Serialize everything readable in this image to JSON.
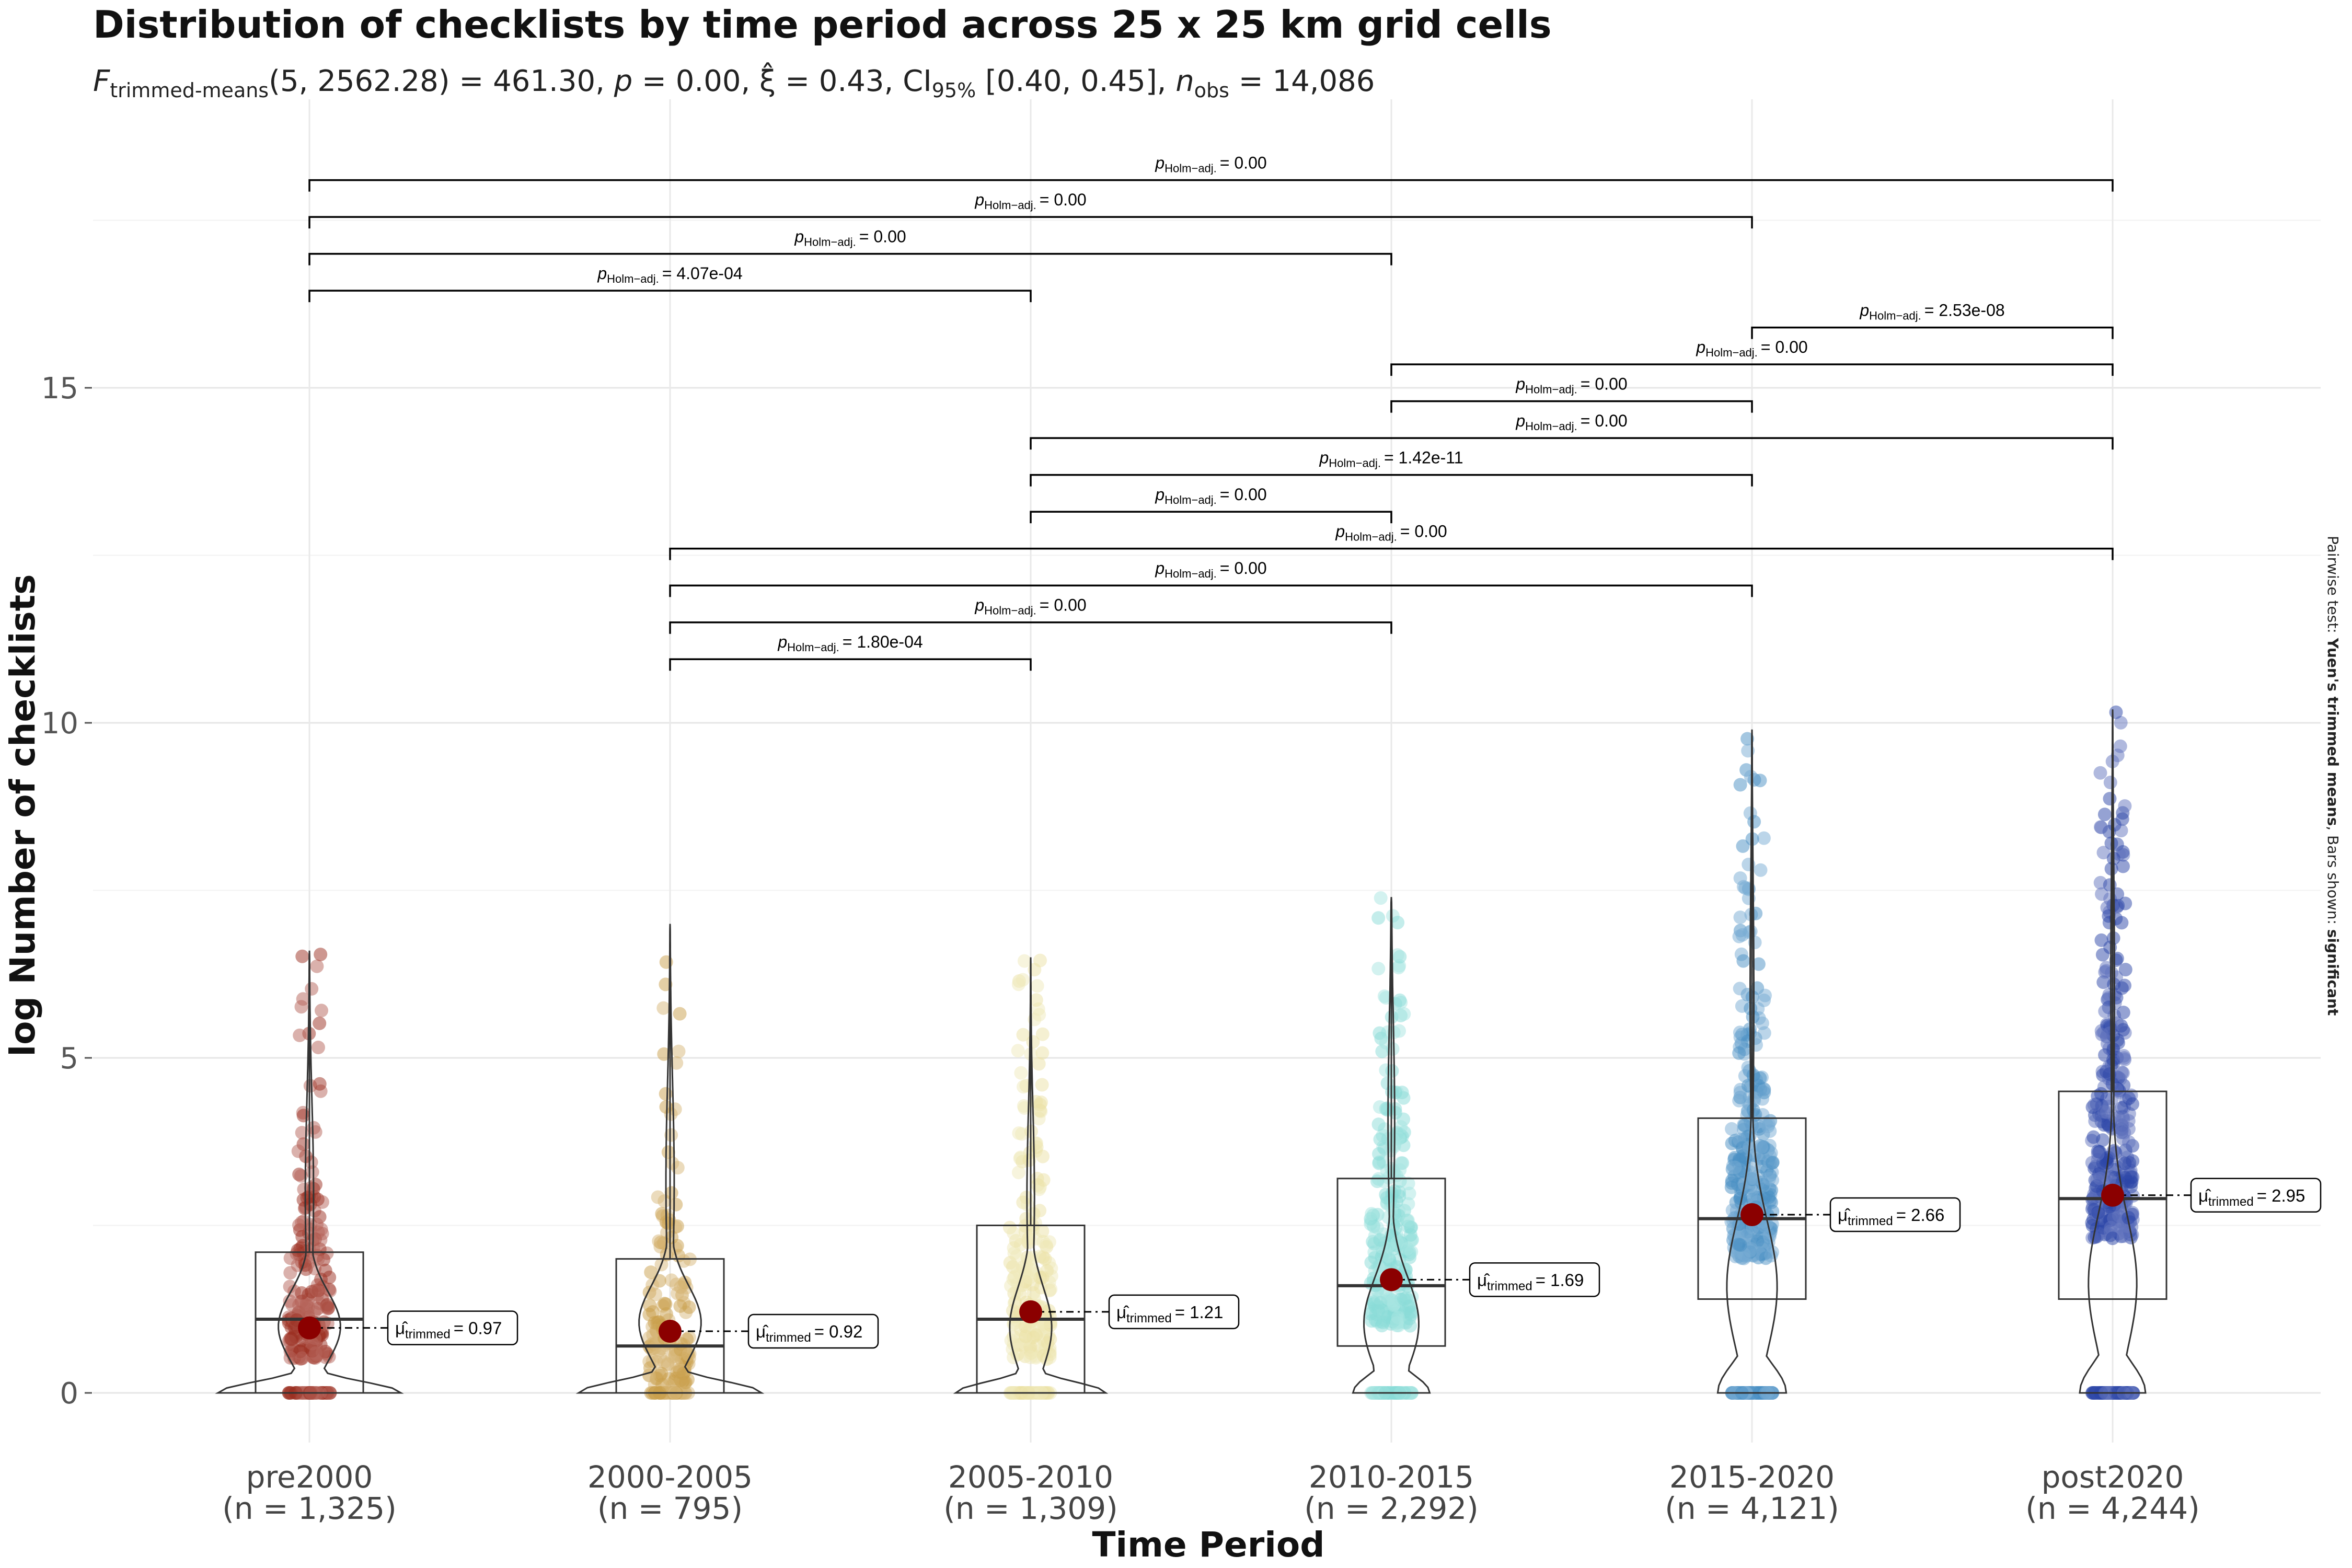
{
  "chart_data": {
    "type": "violin",
    "title": "Distribution of checklists by time period across 25 x 25 km grid cells",
    "subtitle": {
      "stat_symbol": "F",
      "stat_sub": "trimmed-means",
      "stat_args": "(5, 2562.28) = 461.30, ",
      "p_symbol": "p",
      "p_text": " = 0.00, ",
      "xi_symbol": "ξ̂",
      "xi_text": " = 0.43, CI",
      "ci_sub": "95%",
      "ci_text": " [0.40, 0.45], ",
      "n_symbol": "n",
      "n_sub": "obs",
      "n_text": " = 14,086"
    },
    "xlabel": "Time Period",
    "ylabel": "log Number of checklists",
    "ylim": [
      -0.8,
      18.5
    ],
    "yticks": [
      0,
      5,
      10,
      15
    ],
    "grid": true,
    "caption": {
      "prefix": "Pairwise test: ",
      "test_bold": "Yuen's trimmed means",
      "middle": ", Bars shown: ",
      "shown_bold": "significant"
    },
    "mu_label_symbol": "μ̂",
    "mu_label_sub": "trimmed",
    "p_label_symbol": "p",
    "p_label_sub": "Holm−adj.",
    "groups": [
      {
        "category": "pre2000",
        "n_label": "(n = 1,325)",
        "color": "#9c3022",
        "trimmed_mean": 0.97,
        "mean_label": "= 0.97",
        "box": {
          "q1": 0.0,
          "median": 1.1,
          "q3": 2.1
        },
        "max": 6.6,
        "width": 1.0,
        "shape": "bottom"
      },
      {
        "category": "2000-2005",
        "n_label": "(n = 795)",
        "color": "#c9a04c",
        "trimmed_mean": 0.92,
        "mean_label": "= 0.92",
        "box": {
          "q1": 0.0,
          "median": 0.7,
          "q3": 2.0
        },
        "max": 7.0,
        "width": 1.0,
        "shape": "bottom"
      },
      {
        "category": "2005-2010",
        "n_label": "(n = 1,309)",
        "color": "#ebe2a5",
        "trimmed_mean": 1.21,
        "mean_label": "= 1.21",
        "box": {
          "q1": 0.0,
          "median": 1.1,
          "q3": 2.5
        },
        "max": 6.5,
        "width": 0.82,
        "shape": "low"
      },
      {
        "category": "2010-2015",
        "n_label": "(n = 2,292)",
        "color": "#89dcd7",
        "trimmed_mean": 1.69,
        "mean_label": "= 1.69",
        "box": {
          "q1": 0.7,
          "median": 1.6,
          "q3": 3.2
        },
        "max": 7.4,
        "width": 0.6,
        "shape": "mid"
      },
      {
        "category": "2015-2020",
        "n_label": "(n = 4,121)",
        "color": "#4a8fc4",
        "trimmed_mean": 2.66,
        "mean_label": "= 2.66",
        "box": {
          "q1": 1.4,
          "median": 2.6,
          "q3": 4.1
        },
        "max": 9.9,
        "width": 0.5,
        "shape": "high"
      },
      {
        "category": "post2020",
        "n_label": "(n = 4,244)",
        "color": "#2c45a8",
        "trimmed_mean": 2.95,
        "mean_label": "= 2.95",
        "box": {
          "q1": 1.4,
          "median": 2.9,
          "q3": 4.5
        },
        "max": 10.2,
        "width": 0.48,
        "shape": "high"
      }
    ],
    "comparisons": [
      {
        "from": 0,
        "to": 5,
        "level": 18.1,
        "p": "= 0.00"
      },
      {
        "from": 0,
        "to": 4,
        "level": 17.55,
        "p": "= 0.00"
      },
      {
        "from": 0,
        "to": 3,
        "level": 17.0,
        "p": "= 0.00"
      },
      {
        "from": 0,
        "to": 2,
        "level": 16.45,
        "p": "= 4.07e-04"
      },
      {
        "from": 4,
        "to": 5,
        "level": 15.9,
        "p": "= 2.53e-08"
      },
      {
        "from": 3,
        "to": 5,
        "level": 15.35,
        "p": "= 0.00"
      },
      {
        "from": 3,
        "to": 4,
        "level": 14.8,
        "p": "= 0.00"
      },
      {
        "from": 2,
        "to": 5,
        "level": 14.25,
        "p": "= 0.00"
      },
      {
        "from": 2,
        "to": 4,
        "level": 13.7,
        "p": "= 1.42e-11"
      },
      {
        "from": 2,
        "to": 3,
        "level": 13.15,
        "p": "= 0.00"
      },
      {
        "from": 1,
        "to": 5,
        "level": 12.6,
        "p": "= 0.00"
      },
      {
        "from": 1,
        "to": 4,
        "level": 12.05,
        "p": "= 0.00"
      },
      {
        "from": 1,
        "to": 3,
        "level": 11.5,
        "p": "= 0.00"
      },
      {
        "from": 1,
        "to": 2,
        "level": 10.95,
        "p": "= 1.80e-04"
      }
    ]
  }
}
